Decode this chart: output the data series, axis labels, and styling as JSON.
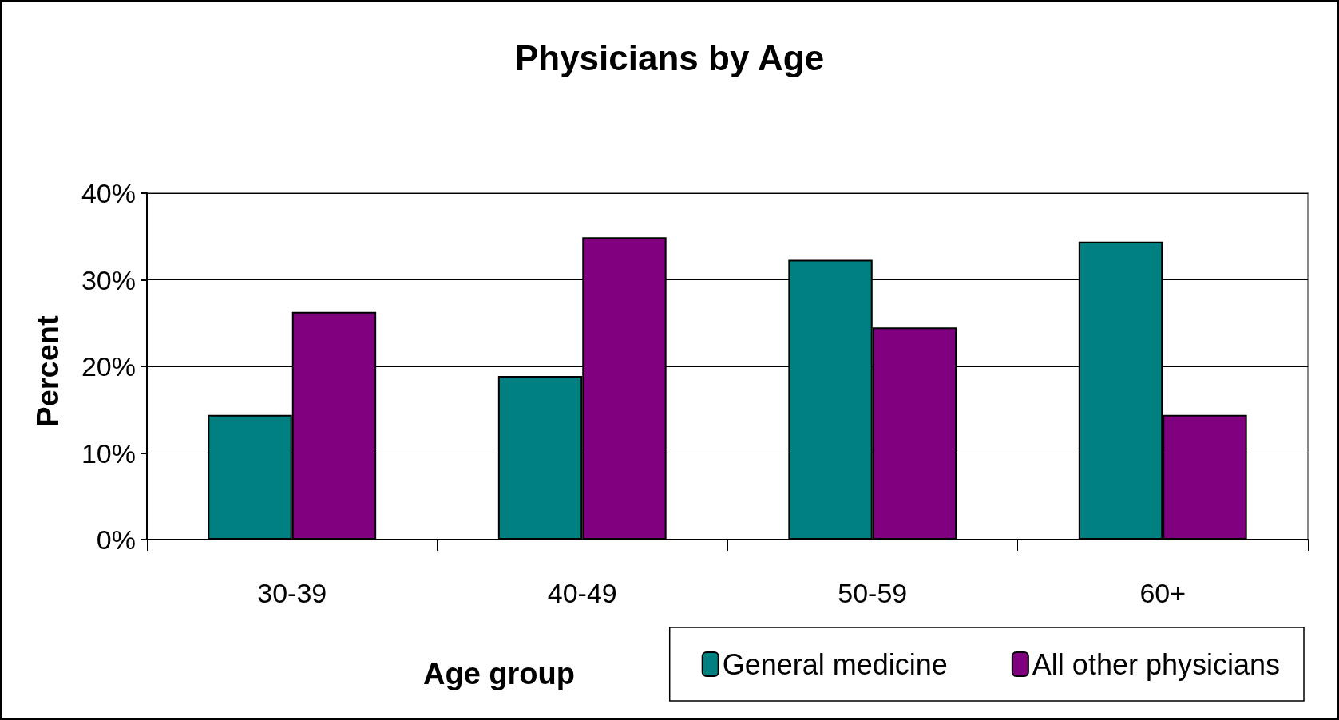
{
  "chart_data": {
    "type": "bar",
    "title": "Physicians by Age",
    "xlabel": "Age group",
    "ylabel": "Percent",
    "categories": [
      "30-39",
      "40-49",
      "50-59",
      "60+"
    ],
    "series": [
      {
        "name": "General medicine",
        "color": "#008080",
        "values": [
          14.4,
          18.9,
          32.3,
          34.4
        ]
      },
      {
        "name": "All other physicians",
        "color": "#800080",
        "values": [
          26.3,
          34.9,
          24.5,
          14.4
        ]
      }
    ],
    "ylim": [
      0,
      40
    ],
    "yticks": [
      {
        "value": 0,
        "label": "0%"
      },
      {
        "value": 10,
        "label": "10%"
      },
      {
        "value": 20,
        "label": "20%"
      },
      {
        "value": 30,
        "label": "30%"
      },
      {
        "value": 40,
        "label": "40%"
      }
    ],
    "grid": "y",
    "legend": "bottom right"
  }
}
